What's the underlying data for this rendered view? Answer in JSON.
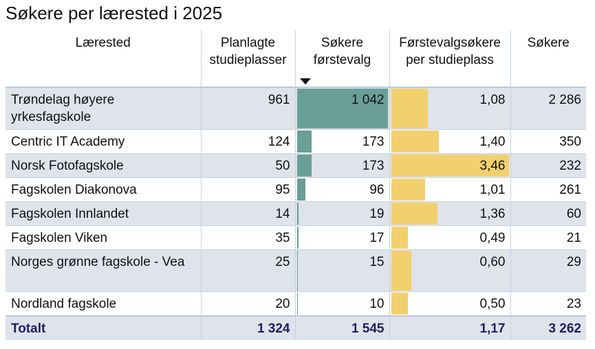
{
  "title": "Søkere per lærested i 2025",
  "colors": {
    "teal_bar": "#6a9f96",
    "yellow_bar": "#f3d06e",
    "row_shade": "#dfe3ea",
    "total_text": "#1f1e5e"
  },
  "table": {
    "headers": [
      "Lærested",
      "Planlagte studieplasser",
      "Søkere førstevalg",
      "Førstevalgsøkere per studieplass",
      "Søkere"
    ],
    "sorted_column": "Søkere førstevalg",
    "rows": [
      {
        "name": "Trøndelag høyere yrkesfagskole",
        "planned": "961",
        "first": "1 042",
        "ratio": "1,08",
        "applicants": "2 286"
      },
      {
        "name": "Centric IT Academy",
        "planned": "124",
        "first": "173",
        "ratio": "1,40",
        "applicants": "350"
      },
      {
        "name": "Norsk Fotofagskole",
        "planned": "50",
        "first": "173",
        "ratio": "3,46",
        "applicants": "232"
      },
      {
        "name": "Fagskolen Diakonova",
        "planned": "95",
        "first": "96",
        "ratio": "1,01",
        "applicants": "261"
      },
      {
        "name": "Fagskolen Innlandet",
        "planned": "14",
        "first": "19",
        "ratio": "1,36",
        "applicants": "60"
      },
      {
        "name": "Fagskolen Viken",
        "planned": "35",
        "first": "17",
        "ratio": "0,49",
        "applicants": "21"
      },
      {
        "name": "Norges grønne fagskole - Vea",
        "planned": "25",
        "first": "15",
        "ratio": "0,60",
        "applicants": "29"
      },
      {
        "name": "Nordland fagskole",
        "planned": "20",
        "first": "10",
        "ratio": "0,50",
        "applicants": "23"
      }
    ],
    "total": {
      "name": "Totalt",
      "planned": "1 324",
      "first": "1 545",
      "ratio": "1,17",
      "applicants": "3 262"
    }
  },
  "chart_data": {
    "type": "table",
    "title": "Søkere per lærested i 2025",
    "columns": [
      "Lærested",
      "Planlagte studieplasser",
      "Søkere førstevalg",
      "Førstevalgsøkere per studieplass",
      "Søkere"
    ],
    "categories": [
      "Trøndelag høyere yrkesfagskole",
      "Centric IT Academy",
      "Norsk Fotofagskole",
      "Fagskolen Diakonova",
      "Fagskolen Innlandet",
      "Fagskolen Viken",
      "Norges grønne fagskole - Vea",
      "Nordland fagskole"
    ],
    "series": [
      {
        "name": "Planlagte studieplasser",
        "values": [
          961,
          124,
          50,
          95,
          14,
          35,
          25,
          20
        ]
      },
      {
        "name": "Søkere førstevalg",
        "values": [
          1042,
          173,
          173,
          96,
          19,
          17,
          15,
          10
        ]
      },
      {
        "name": "Førstevalgsøkere per studieplass",
        "values": [
          1.08,
          1.4,
          3.46,
          1.01,
          1.36,
          0.49,
          0.6,
          0.5
        ]
      },
      {
        "name": "Søkere",
        "values": [
          2286,
          350,
          232,
          261,
          60,
          21,
          29,
          23
        ]
      }
    ],
    "totals": {
      "Planlagte studieplasser": 1324,
      "Søkere førstevalg": 1545,
      "Førstevalgsøkere per studieplass": 1.17,
      "Søkere": 3262
    },
    "data_bars": {
      "Søkere førstevalg": {
        "max": 1042
      },
      "Førstevalgsøkere per studieplass": {
        "max": 3.46
      }
    }
  }
}
